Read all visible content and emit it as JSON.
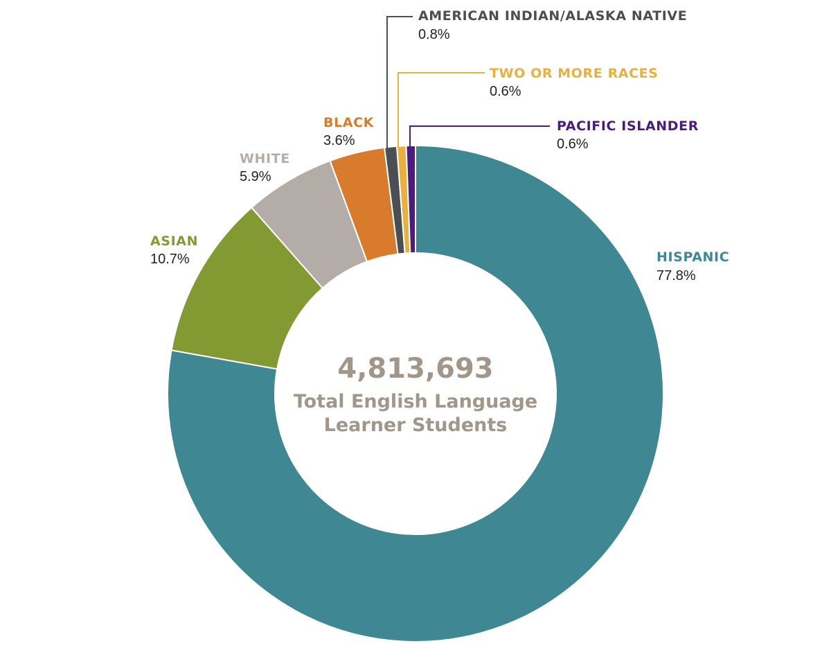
{
  "chart_data": {
    "type": "pie",
    "center_total": "4,813,693",
    "center_label_line1": "Total English Language",
    "center_label_line2": "Learner Students",
    "segments": [
      {
        "name": "HISPANIC",
        "label": "77.8%",
        "value": 77.8,
        "color": "#3e8793"
      },
      {
        "name": "ASIAN",
        "label": "10.7%",
        "value": 10.7,
        "color": "#829a31"
      },
      {
        "name": "WHITE",
        "label": "5.9%",
        "value": 5.9,
        "color": "#b4ada7"
      },
      {
        "name": "BLACK",
        "label": "3.6%",
        "value": 3.6,
        "color": "#d97b2d"
      },
      {
        "name": "AMERICAN INDIAN/ALASKA NATIVE",
        "label": "0.8%",
        "value": 0.8,
        "color": "#4b4f54"
      },
      {
        "name": "TWO OR MORE RACES",
        "label": "0.6%",
        "value": 0.6,
        "color": "#e8b03e"
      },
      {
        "name": "PACIFIC ISLANDER",
        "label": "0.6%",
        "value": 0.6,
        "color": "#4b1c7d"
      }
    ],
    "name_colors": {
      "HISPANIC": "#3e8793",
      "ASIAN": "#829a31",
      "WHITE": "#b4ada7",
      "BLACK": "#d97b2d",
      "AMERICAN INDIAN/ALASKA NATIVE": "#4b4f54",
      "TWO OR MORE RACES": "#e8b03e",
      "PACIFIC ISLANDER": "#4b1c7d"
    }
  }
}
